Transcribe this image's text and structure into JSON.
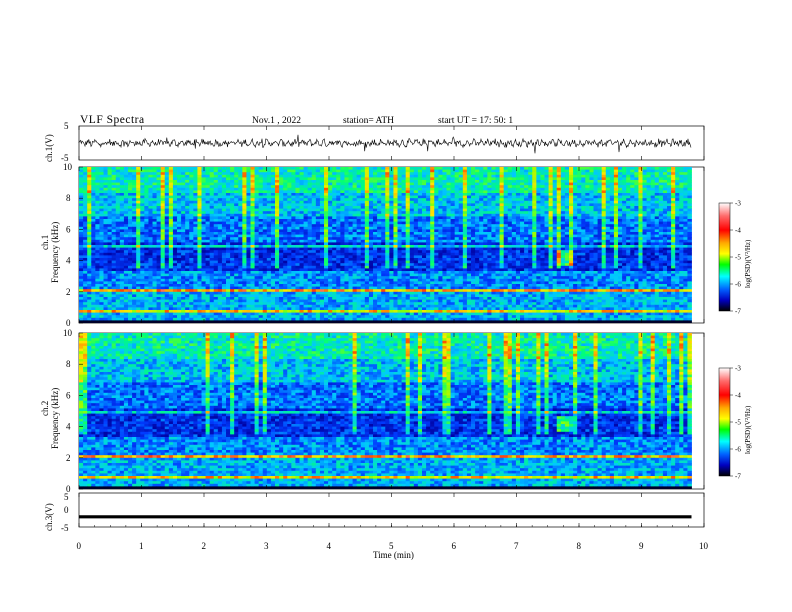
{
  "header": {
    "title": "VLF  Spectra",
    "date": "Nov.1  , 2022",
    "station": "station= ATH",
    "start": "start  UT  =    17: 50: 1"
  },
  "chart_data": [
    {
      "type": "line",
      "name": "ch1-waveform",
      "ylabel": "ch.1(V)",
      "ylim": [
        -5,
        5
      ],
      "yticks": [
        "5",
        "-5"
      ],
      "xlim": [
        0,
        10
      ],
      "data_extent_min": 9.8
    },
    {
      "type": "heatmap",
      "name": "ch1-spectrogram",
      "ylabel": "ch.1\nFrequency  (kHz)",
      "ylim": [
        0,
        10
      ],
      "yticks": [
        "0",
        "2",
        "4",
        "6",
        "8",
        "10"
      ],
      "xlim": [
        0,
        10
      ],
      "colorbar": {
        "label": "log(PSD)(V²/Hz)",
        "range": [
          -7,
          -3
        ],
        "ticks": [
          "-3",
          "-4",
          "-5",
          "-6",
          "-7"
        ]
      }
    },
    {
      "type": "heatmap",
      "name": "ch2-spectrogram",
      "ylabel": "ch.2\nFrequency  (kHz)",
      "ylim": [
        0,
        10
      ],
      "yticks": [
        "0",
        "2",
        "4",
        "6",
        "8",
        "10"
      ],
      "xlim": [
        0,
        10
      ],
      "colorbar": {
        "label": "log(PSD)(V²/Hz)",
        "range": [
          -7,
          -3
        ],
        "ticks": [
          "-3",
          "-4",
          "-5",
          "-6",
          "-7"
        ]
      }
    },
    {
      "type": "line",
      "name": "ch3-waveform",
      "ylabel": "ch.3(V)",
      "ylim": [
        -5,
        5
      ],
      "yticks": [
        "5",
        "0",
        "-5"
      ],
      "xlim": [
        0,
        10
      ],
      "approx_level": -2
    }
  ],
  "xaxis": {
    "label": "Time  (min)",
    "ticks": [
      "0",
      "1",
      "2",
      "3",
      "4",
      "5",
      "6",
      "7",
      "8",
      "9",
      "10"
    ]
  },
  "panel_labels": {
    "ch1_wave": "ch.1(V)",
    "ch1_spec": "ch.1",
    "ch2_spec": "ch.2",
    "ch3_wave": "ch.3(V)",
    "freq": "Frequency  (kHz)"
  },
  "colors": {
    "waveform": "#000000",
    "low": "#000080",
    "mid": "#00ff00",
    "high": "#ff0000"
  }
}
